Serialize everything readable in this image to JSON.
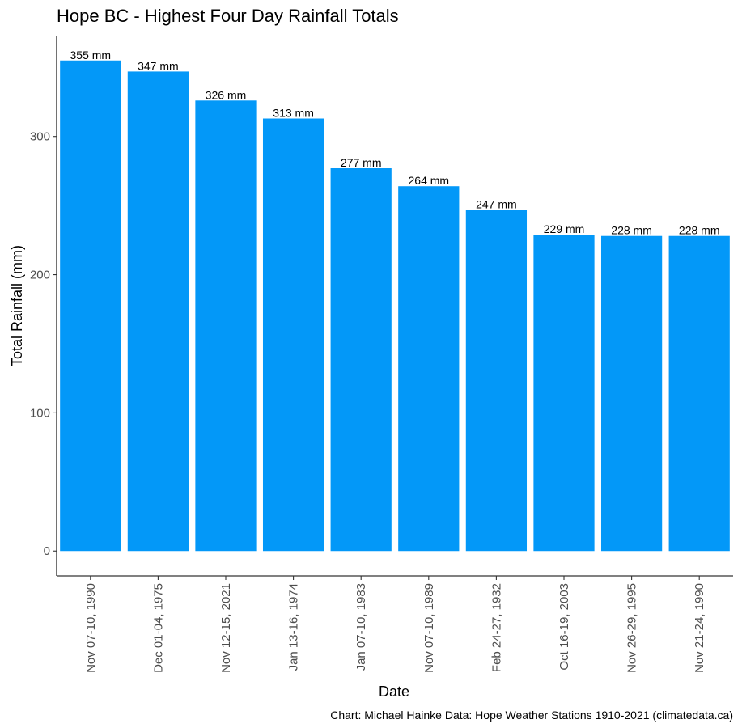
{
  "chart_data": {
    "type": "bar",
    "title": "Hope BC - Highest Four Day Rainfall Totals",
    "xlabel": "Date",
    "ylabel": "Total Rainfall (mm)",
    "caption": "Chart: Michael Hainke  Data: Hope Weather Stations 1910-2021 (climatedata.ca)",
    "categories": [
      "Nov 07-10, 1990",
      "Dec 01-04, 1975",
      "Nov 12-15, 2021",
      "Jan 13-16, 1974",
      "Jan 07-10, 1983",
      "Nov 07-10, 1989",
      "Feb 24-27, 1932",
      "Oct 16-19, 2003",
      "Nov 26-29, 1995",
      "Nov 21-24, 1990"
    ],
    "values": [
      355,
      347,
      326,
      313,
      277,
      264,
      247,
      229,
      228,
      228
    ],
    "data_labels": [
      "355 mm",
      "347 mm",
      "326 mm",
      "313 mm",
      "277 mm",
      "264 mm",
      "247 mm",
      "229 mm",
      "228 mm",
      "228 mm"
    ],
    "yticks": [
      0,
      100,
      200,
      300
    ],
    "ylim": [
      -18,
      373
    ],
    "bar_color": "#0398f8",
    "grid": false,
    "legend": "none"
  }
}
